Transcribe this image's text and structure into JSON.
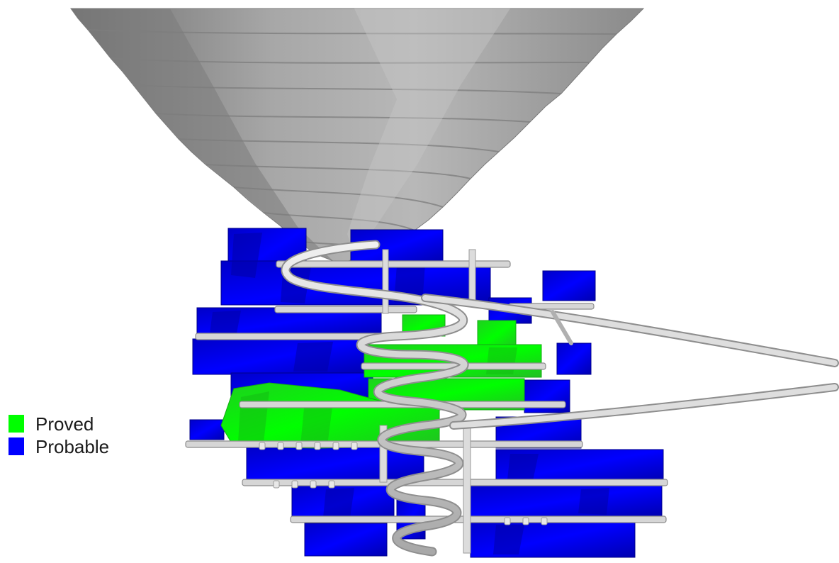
{
  "legend": {
    "items": [
      {
        "label": "Proved",
        "color": "#00FF00"
      },
      {
        "label": "Probable",
        "color": "#0000FF"
      }
    ]
  },
  "colors": {
    "pit_shell": "#9a9a9a",
    "pit_shell_light": "#b9b9b9",
    "pit_shell_dark": "#6f6f6f",
    "proved": "#00FF00",
    "proved_dark": "#1fc41f",
    "probable": "#0000FF",
    "probable_dark": "#0000b8",
    "development": "#d6d6d6",
    "development_edge": "#8c8c8c"
  },
  "scene_parts": {
    "open_pit": "open-pit-shell",
    "stopes": "stope-blocks",
    "decline": "decline-ramp",
    "level_drives": "level-development"
  }
}
